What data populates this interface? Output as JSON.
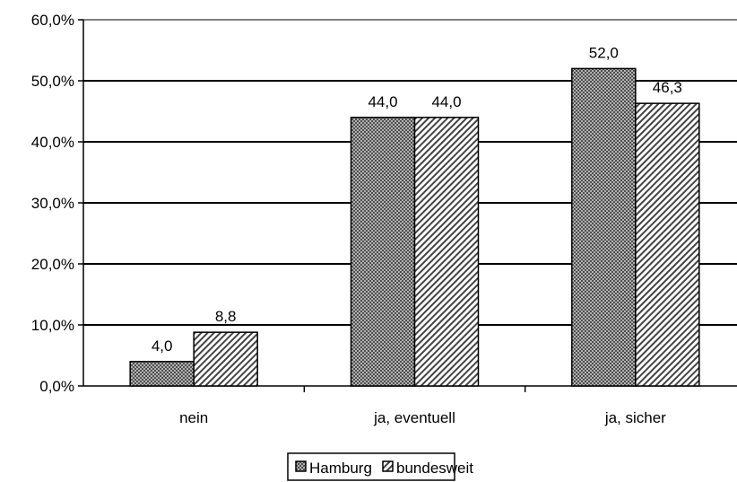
{
  "chart_data": {
    "type": "bar",
    "categories": [
      "nein",
      "ja, eventuell",
      "ja, sicher"
    ],
    "series": [
      {
        "name": "Hamburg",
        "values": [
          4.0,
          44.0,
          52.0
        ],
        "labels": [
          "4,0",
          "44,0",
          "52,0"
        ],
        "pattern": "crosshatch"
      },
      {
        "name": "bundesweit",
        "values": [
          8.8,
          44.0,
          46.3
        ],
        "labels": [
          "8,8",
          "44,0",
          "46,3"
        ],
        "pattern": "diagonal"
      }
    ],
    "yticks": [
      "0,0%",
      "10,0%",
      "20,0%",
      "30,0%",
      "40,0%",
      "50,0%",
      "60,0%"
    ],
    "ylim": [
      0,
      60
    ],
    "grid": true,
    "legend_position": "bottom-center",
    "colors": {
      "hamburg": "#7f7f7f",
      "bundesweit": "#ffffff",
      "grid": "#000000",
      "top_border": "#808080"
    }
  }
}
